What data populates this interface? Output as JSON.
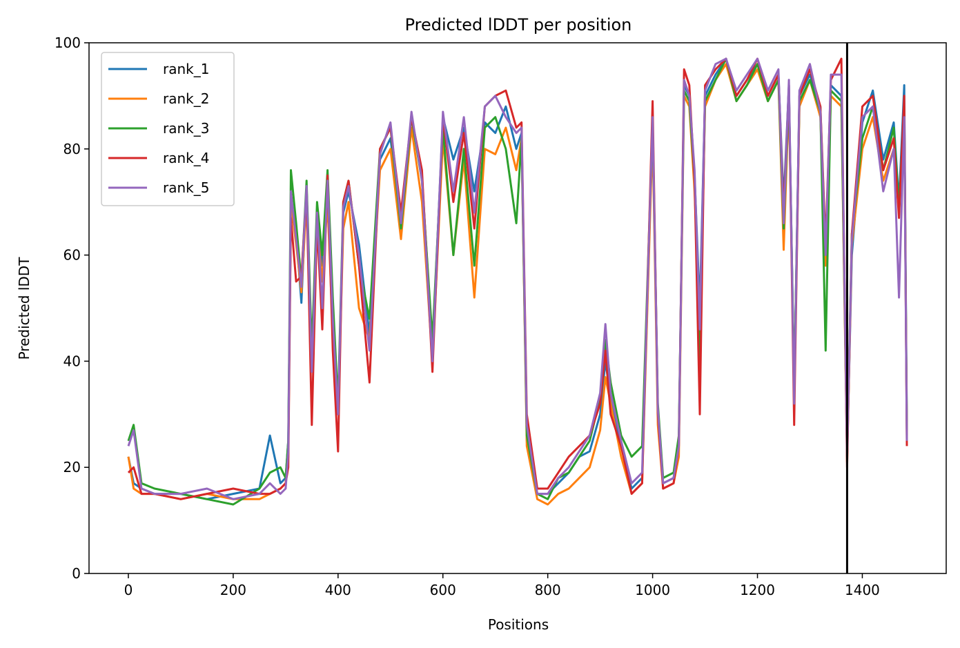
{
  "chart_data": {
    "type": "line",
    "title": "Predicted lDDT per position",
    "xlabel": "Positions",
    "ylabel": "Predicted lDDT",
    "xlim": [
      -75,
      1560
    ],
    "ylim": [
      0,
      100
    ],
    "xticks": [
      0,
      200,
      400,
      600,
      800,
      1000,
      1200,
      1400
    ],
    "yticks": [
      0,
      20,
      40,
      60,
      80,
      100
    ],
    "grid": false,
    "legend_position": "top-left",
    "vline": {
      "x": 1371,
      "color": "#000000"
    },
    "x": [
      0,
      10,
      25,
      50,
      100,
      150,
      200,
      250,
      270,
      290,
      300,
      305,
      310,
      320,
      330,
      340,
      350,
      360,
      370,
      380,
      390,
      400,
      410,
      420,
      440,
      460,
      480,
      500,
      520,
      540,
      560,
      580,
      600,
      620,
      640,
      660,
      680,
      700,
      720,
      740,
      750,
      760,
      780,
      800,
      820,
      840,
      860,
      880,
      900,
      910,
      920,
      940,
      960,
      980,
      1000,
      1010,
      1020,
      1040,
      1050,
      1060,
      1070,
      1080,
      1090,
      1100,
      1120,
      1140,
      1160,
      1180,
      1200,
      1220,
      1240,
      1250,
      1260,
      1270,
      1280,
      1300,
      1320,
      1330,
      1340,
      1360,
      1371,
      1380,
      1400,
      1420,
      1440,
      1460,
      1470,
      1480,
      1485
    ],
    "series": [
      {
        "name": "rank_1",
        "color": "#1f77b4",
        "values": [
          22,
          17,
          16,
          15,
          15,
          14,
          15,
          16,
          26,
          17,
          18,
          25,
          68,
          64,
          51,
          73,
          40,
          68,
          58,
          73,
          50,
          30,
          68,
          72,
          62,
          45,
          78,
          82,
          66,
          86,
          75,
          42,
          86,
          78,
          84,
          72,
          85,
          83,
          88,
          80,
          83,
          25,
          15,
          15,
          17,
          19,
          22,
          23,
          30,
          40,
          33,
          24,
          16,
          18,
          85,
          30,
          17,
          18,
          25,
          92,
          90,
          75,
          50,
          90,
          94,
          97,
          90,
          93,
          96,
          90,
          94,
          70,
          92,
          34,
          90,
          94,
          88,
          60,
          92,
          90,
          22,
          60,
          85,
          91,
          78,
          85,
          70,
          92,
          27
        ]
      },
      {
        "name": "rank_2",
        "color": "#ff7f0e",
        "values": [
          22,
          16,
          15,
          15,
          14,
          15,
          14,
          14,
          15,
          16,
          17,
          22,
          70,
          62,
          53,
          70,
          38,
          66,
          55,
          70,
          45,
          30,
          65,
          70,
          50,
          44,
          76,
          80,
          63,
          84,
          70,
          40,
          82,
          60,
          78,
          52,
          80,
          79,
          84,
          76,
          82,
          24,
          14,
          13,
          15,
          16,
          18,
          20,
          27,
          37,
          32,
          22,
          15,
          17,
          83,
          28,
          16,
          17,
          22,
          90,
          88,
          72,
          47,
          88,
          93,
          96,
          89,
          92,
          95,
          89,
          93,
          61,
          90,
          33,
          88,
          93,
          86,
          58,
          90,
          88,
          21,
          62,
          80,
          86,
          74,
          80,
          68,
          86,
          26
        ]
      },
      {
        "name": "rank_3",
        "color": "#2ca02c",
        "values": [
          25,
          28,
          17,
          16,
          15,
          14,
          13,
          16,
          19,
          20,
          18,
          25,
          76,
          66,
          55,
          74,
          42,
          70,
          60,
          76,
          52,
          32,
          70,
          74,
          58,
          48,
          80,
          84,
          65,
          86,
          74,
          44,
          84,
          60,
          80,
          58,
          84,
          86,
          80,
          66,
          82,
          26,
          15,
          14,
          18,
          19,
          22,
          25,
          33,
          44,
          36,
          26,
          22,
          24,
          85,
          32,
          18,
          19,
          26,
          91,
          89,
          74,
          40,
          89,
          93,
          97,
          89,
          92,
          96,
          89,
          93,
          65,
          91,
          35,
          89,
          93,
          87,
          42,
          91,
          89,
          23,
          64,
          82,
          88,
          76,
          84,
          69,
          88,
          27
        ]
      },
      {
        "name": "rank_4",
        "color": "#d62728",
        "values": [
          19,
          20,
          15,
          15,
          14,
          15,
          16,
          15,
          15,
          16,
          17,
          20,
          67,
          55,
          56,
          72,
          28,
          66,
          46,
          75,
          42,
          23,
          70,
          74,
          58,
          36,
          80,
          84,
          68,
          86,
          76,
          38,
          86,
          70,
          83,
          65,
          88,
          90,
          91,
          84,
          85,
          30,
          16,
          16,
          19,
          22,
          24,
          26,
          32,
          42,
          30,
          24,
          15,
          17,
          89,
          30,
          16,
          17,
          24,
          95,
          92,
          74,
          30,
          92,
          95,
          97,
          90,
          93,
          97,
          90,
          94,
          68,
          92,
          28,
          90,
          95,
          88,
          62,
          93,
          97,
          20,
          64,
          88,
          90,
          76,
          82,
          67,
          90,
          24
        ]
      },
      {
        "name": "rank_5",
        "color": "#9467bd",
        "values": [
          24,
          27,
          16,
          15,
          15,
          16,
          14,
          15,
          17,
          15,
          16,
          23,
          72,
          63,
          54,
          73,
          38,
          68,
          50,
          74,
          48,
          30,
          69,
          73,
          60,
          42,
          79,
          85,
          66,
          87,
          74,
          40,
          87,
          72,
          86,
          68,
          88,
          90,
          86,
          83,
          84,
          28,
          15,
          15,
          18,
          20,
          23,
          26,
          34,
          47,
          34,
          25,
          17,
          19,
          86,
          31,
          17,
          18,
          24,
          93,
          90,
          76,
          46,
          91,
          96,
          97,
          91,
          94,
          97,
          91,
          95,
          66,
          93,
          32,
          91,
          96,
          87,
          60,
          94,
          94,
          22,
          63,
          86,
          88,
          72,
          80,
          52,
          86,
          25
        ]
      }
    ]
  }
}
